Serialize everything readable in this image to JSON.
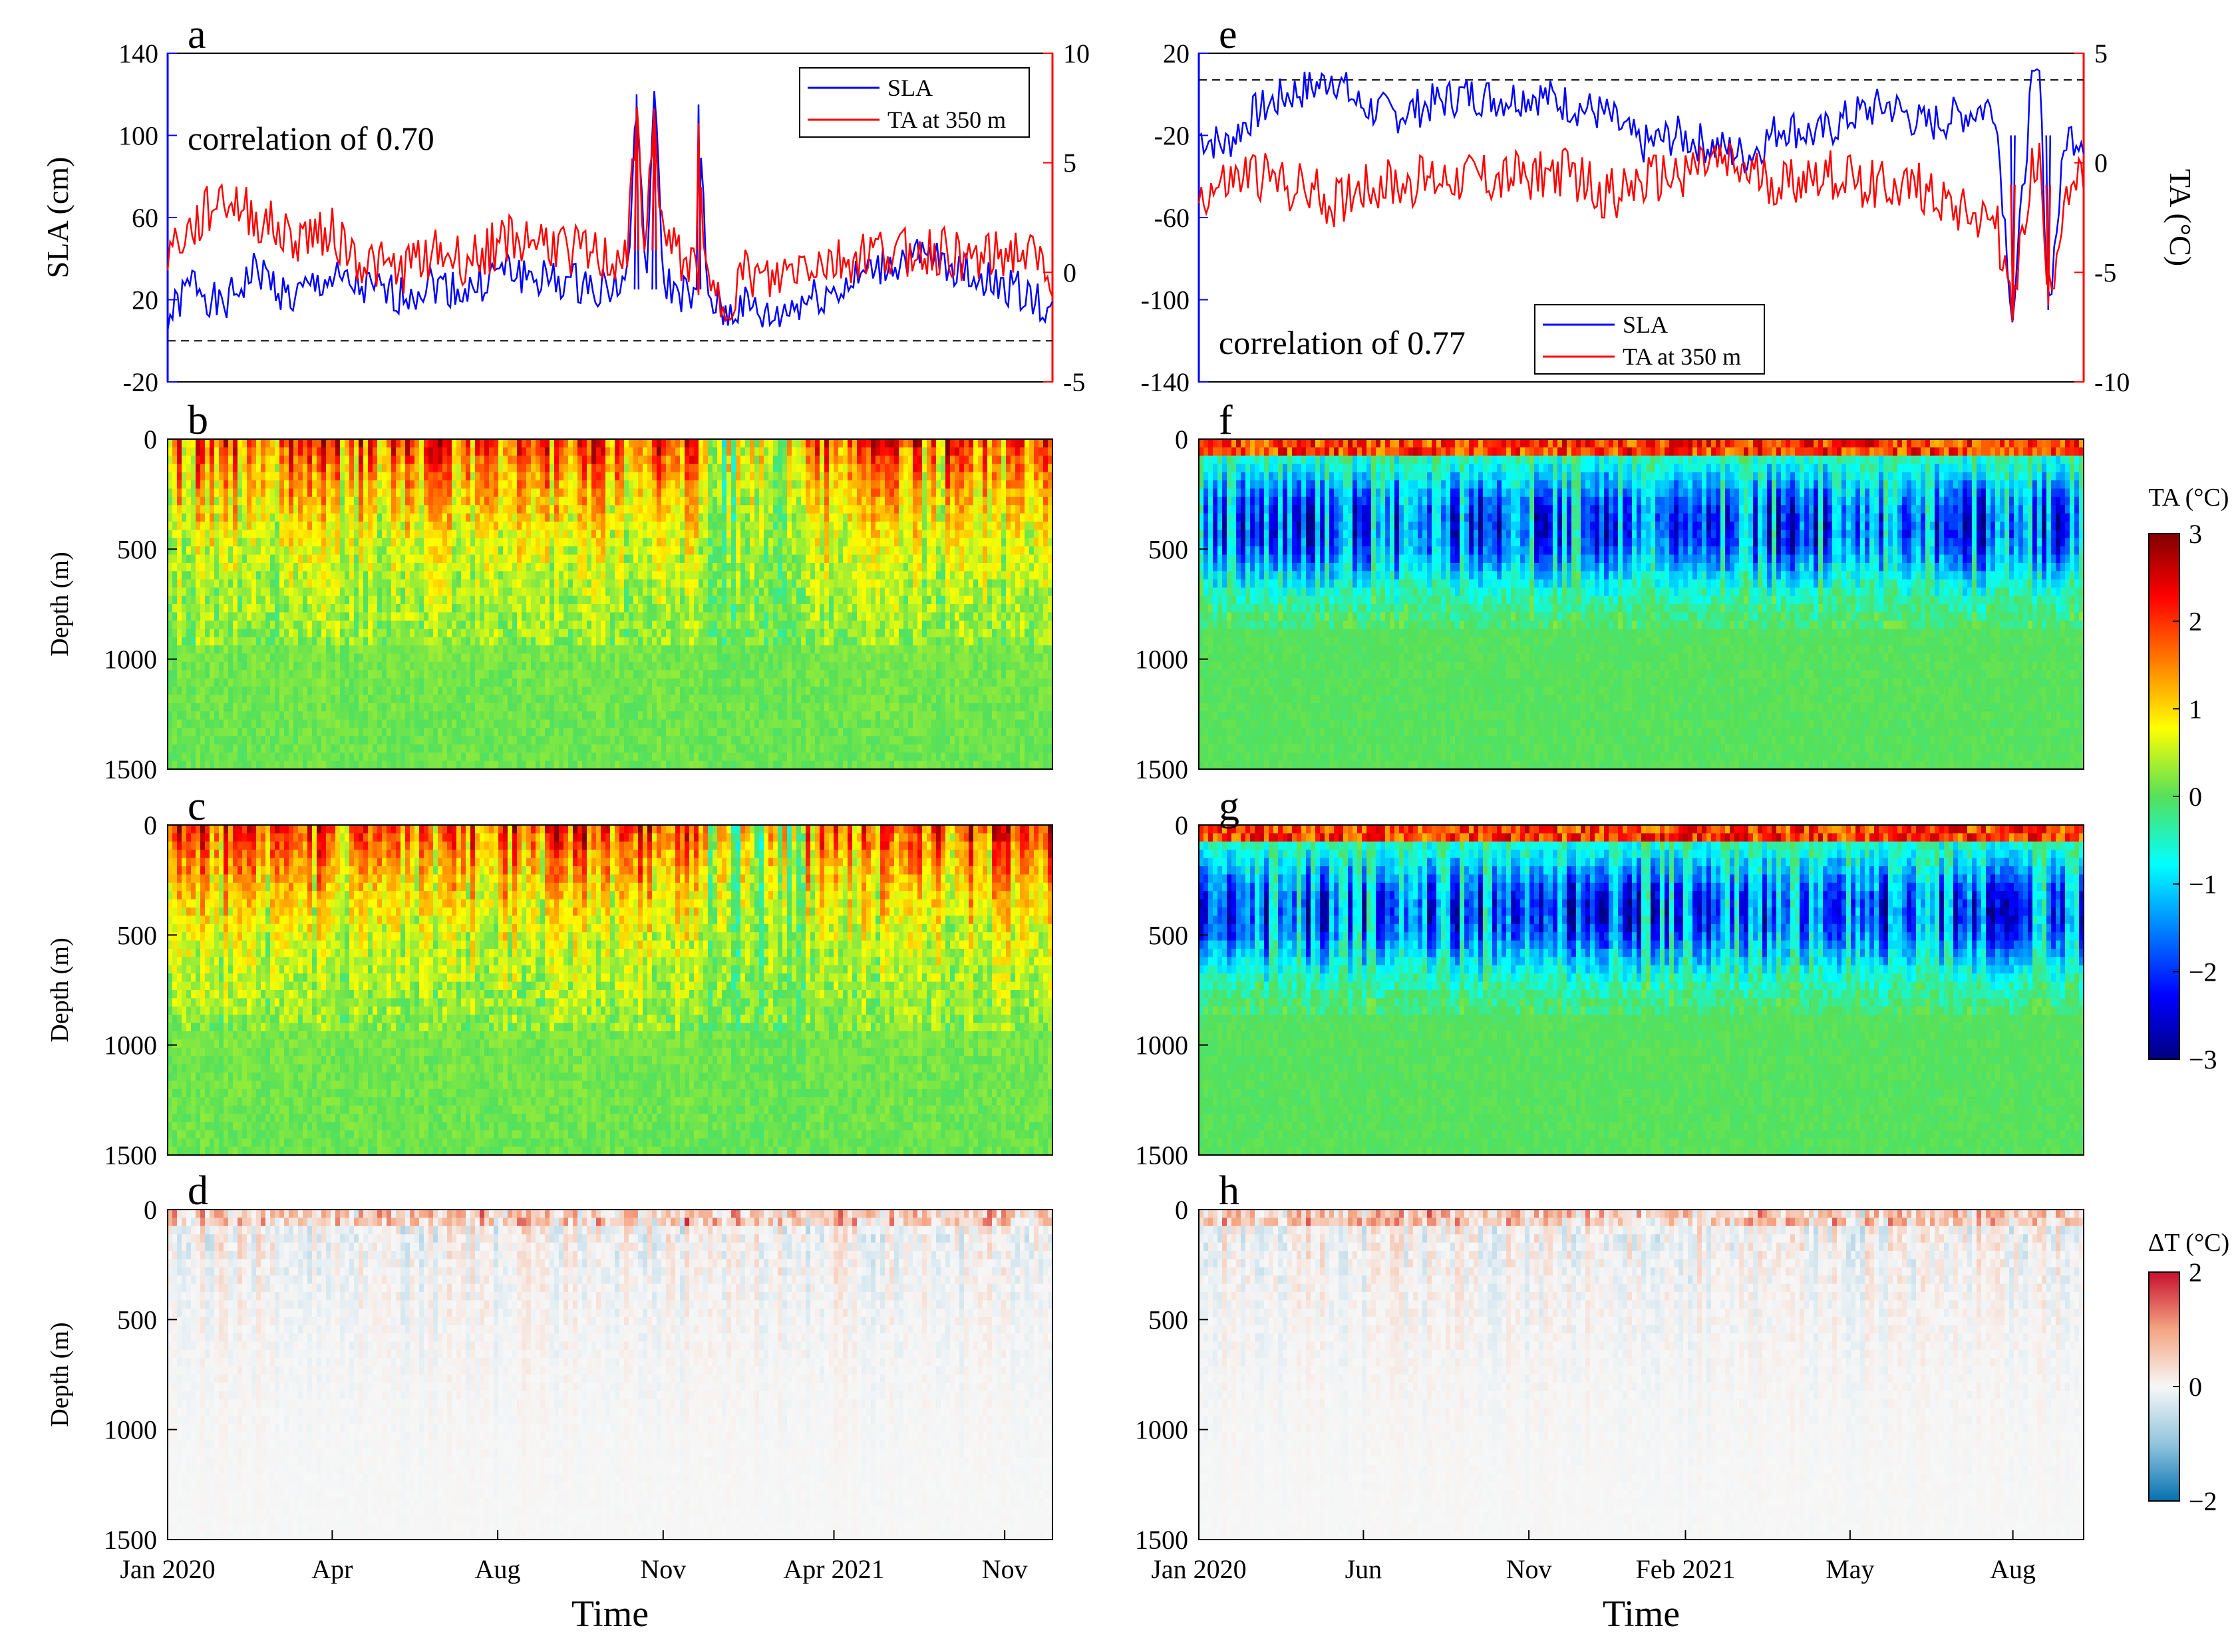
{
  "chart_data": [
    {
      "id": "a",
      "type": "line",
      "letter": "a",
      "annotation": "correlation of 0.70",
      "ylabel_left": "SLA (cm)",
      "ylabel_right": "",
      "ylim_left": [
        -20,
        140
      ],
      "yticks_left": [
        "140",
        "100",
        "60",
        "20",
        "-20"
      ],
      "ylim_right": [
        -5,
        10
      ],
      "yticks_right": [
        "10",
        "5",
        "0",
        "-5"
      ],
      "reference_line_left": 0,
      "legend": [
        "SLA",
        "TA at 350 m"
      ],
      "colors": {
        "sla": "#0000ff",
        "ta": "#ff0000"
      },
      "series": [
        {
          "name": "SLA",
          "axis": "left",
          "x": [
            0,
            0.03,
            0.06,
            0.1,
            0.14,
            0.18,
            0.22,
            0.26,
            0.3,
            0.34,
            0.38,
            0.42,
            0.46,
            0.5,
            0.52,
            0.53,
            0.54,
            0.55,
            0.56,
            0.57,
            0.6,
            0.6,
            0.61,
            0.63,
            0.65,
            0.68,
            0.72,
            0.76,
            0.8,
            0.84,
            0.88,
            0.92,
            0.96,
            1.0
          ],
          "y": [
            10,
            30,
            15,
            35,
            20,
            30,
            25,
            22,
            28,
            24,
            35,
            30,
            28,
            26,
            30,
            120,
            25,
            120,
            30,
            25,
            20,
            115,
            22,
            12,
            18,
            10,
            20,
            25,
            35,
            40,
            38,
            30,
            25,
            15
          ]
        },
        {
          "name": "TA at 350 m",
          "axis": "right",
          "x": [
            0,
            0.03,
            0.06,
            0.1,
            0.14,
            0.18,
            0.22,
            0.26,
            0.3,
            0.34,
            0.38,
            0.42,
            0.46,
            0.5,
            0.52,
            0.53,
            0.54,
            0.55,
            0.56,
            0.57,
            0.6,
            0.6,
            0.61,
            0.63,
            0.65,
            0.68,
            0.72,
            0.76,
            0.8,
            0.84,
            0.88,
            0.92,
            0.96,
            1.0
          ],
          "y": [
            1,
            2,
            3.5,
            2.5,
            1.5,
            2,
            0.5,
            0,
            1,
            0.5,
            1.5,
            1.5,
            1,
            0.5,
            1,
            7,
            1,
            7,
            1.5,
            1,
            0,
            6.8,
            -1,
            -1.5,
            0,
            -0.5,
            0.5,
            0.5,
            1,
            1,
            1,
            0.5,
            1,
            0
          ]
        }
      ]
    },
    {
      "id": "e",
      "type": "line",
      "letter": "e",
      "annotation": "correlation of 0.77",
      "ylabel_left": "",
      "ylabel_right": "TA (°C)",
      "ylim_left": [
        -140,
        20
      ],
      "yticks_left": [
        "20",
        "-20",
        "-60",
        "-100",
        "-140"
      ],
      "ylim_right": [
        -10,
        5
      ],
      "yticks_right": [
        "5",
        "0",
        "-5",
        "-10"
      ],
      "reference_line_left": 7,
      "legend": [
        "SLA",
        "TA at 350 m"
      ],
      "colors": {
        "sla": "#0000ff",
        "ta": "#ff0000"
      },
      "series": [
        {
          "name": "SLA",
          "axis": "left",
          "x": [
            0,
            0.03,
            0.06,
            0.1,
            0.14,
            0.15,
            0.18,
            0.22,
            0.26,
            0.3,
            0.34,
            0.38,
            0.42,
            0.46,
            0.5,
            0.54,
            0.58,
            0.62,
            0.66,
            0.7,
            0.74,
            0.78,
            0.82,
            0.86,
            0.9,
            0.92,
            0.94,
            0.95,
            0.96,
            0.98,
            1.0
          ],
          "y": [
            -20,
            -25,
            -10,
            0,
            5,
            10,
            -5,
            -10,
            -5,
            0,
            -2,
            0,
            -5,
            -10,
            -25,
            -20,
            -25,
            -30,
            -15,
            -20,
            -10,
            -5,
            -15,
            -10,
            -5,
            -110,
            0,
            10,
            -105,
            -20,
            -20
          ]
        },
        {
          "name": "TA at 350 m",
          "axis": "right",
          "x": [
            0,
            0.03,
            0.06,
            0.1,
            0.14,
            0.15,
            0.18,
            0.22,
            0.26,
            0.3,
            0.34,
            0.38,
            0.42,
            0.46,
            0.5,
            0.54,
            0.58,
            0.62,
            0.66,
            0.7,
            0.74,
            0.78,
            0.82,
            0.86,
            0.9,
            0.92,
            0.94,
            0.95,
            0.96,
            0.98,
            1.0
          ],
          "y": [
            -1.5,
            -1,
            -0.5,
            -1,
            -1.5,
            -2,
            -1,
            -1,
            -0.8,
            -0.5,
            -0.8,
            -0.5,
            -0.5,
            -1.5,
            -1,
            -0.5,
            0,
            -0.5,
            -1,
            -0.5,
            -0.8,
            -1,
            -1.2,
            -2,
            -2.5,
            -7,
            -0.5,
            0,
            -6.5,
            -1,
            -1
          ]
        }
      ]
    },
    {
      "id": "b",
      "type": "heatmap",
      "letter": "b",
      "ylabel": "Depth (m)",
      "yticks": [
        "0",
        "500",
        "1000",
        "1500"
      ],
      "ylim": [
        1500,
        0
      ],
      "colorscale": "jet",
      "clim": [
        -3,
        3
      ]
    },
    {
      "id": "c",
      "type": "heatmap",
      "letter": "c",
      "ylabel": "Depth (m)",
      "yticks": [
        "0",
        "500",
        "1000",
        "1500"
      ],
      "ylim": [
        1500,
        0
      ],
      "colorscale": "jet",
      "clim": [
        -3,
        3
      ]
    },
    {
      "id": "d",
      "type": "heatmap",
      "letter": "d",
      "ylabel": "Depth (m)",
      "yticks": [
        "0",
        "500",
        "1000",
        "1500"
      ],
      "ylim": [
        1500,
        0
      ],
      "colorscale": "diverging",
      "clim": [
        -2,
        2
      ],
      "xticks": [
        "Jan 2020",
        "Apr",
        "Aug",
        "Nov",
        "Apr 2021",
        "Nov"
      ],
      "xlabel": "Time"
    },
    {
      "id": "f",
      "type": "heatmap",
      "letter": "f",
      "ylabel": "",
      "yticks": [
        "0",
        "500",
        "1000",
        "1500"
      ],
      "ylim": [
        1500,
        0
      ],
      "colorscale": "jet",
      "clim": [
        -3,
        3
      ]
    },
    {
      "id": "g",
      "type": "heatmap",
      "letter": "g",
      "ylabel": "",
      "yticks": [
        "0",
        "500",
        "1000",
        "1500"
      ],
      "ylim": [
        1500,
        0
      ],
      "colorscale": "jet",
      "clim": [
        -3,
        3
      ]
    },
    {
      "id": "h",
      "type": "heatmap",
      "letter": "h",
      "ylabel": "",
      "yticks": [
        "0",
        "500",
        "1000",
        "1500"
      ],
      "ylim": [
        1500,
        0
      ],
      "colorscale": "diverging",
      "clim": [
        -2,
        2
      ],
      "xticks": [
        "Jan 2020",
        "Jun",
        "Nov",
        "Feb 2021",
        "May",
        "Aug"
      ],
      "xlabel": "Time"
    }
  ],
  "colorbars": {
    "ta": {
      "label": "TA (°C)",
      "ticks": [
        "3",
        "2",
        "1",
        "0",
        "−1",
        "−2",
        "−3"
      ]
    },
    "dt": {
      "label": "ΔT (°C)",
      "ticks": [
        "2",
        "0",
        "−2"
      ]
    }
  }
}
